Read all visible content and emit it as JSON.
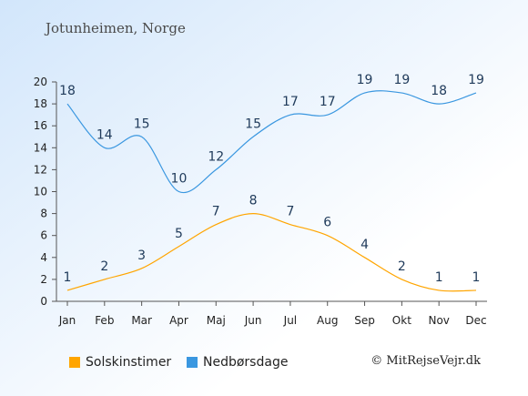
{
  "page": {
    "title": "Jotunheimen, Norge",
    "copyright": "© MitRejseVejr.dk"
  },
  "chart_data": {
    "type": "line",
    "categories": [
      "Jan",
      "Feb",
      "Mar",
      "Apr",
      "Maj",
      "Jun",
      "Jul",
      "Aug",
      "Sep",
      "Okt",
      "Nov",
      "Dec"
    ],
    "ylim": [
      0,
      20
    ],
    "yticks": [
      0,
      2,
      4,
      6,
      8,
      10,
      12,
      14,
      16,
      18,
      20
    ],
    "grid": false,
    "legend_position": "bottom",
    "series": [
      {
        "name": "Solskinstimer",
        "color": "#ffa500",
        "values": [
          1,
          2,
          3,
          5,
          7,
          8,
          7,
          6,
          4,
          2,
          1,
          1
        ]
      },
      {
        "name": "Nedbørsdage",
        "color": "#3a97e0",
        "values": [
          18,
          14,
          15,
          10,
          12,
          15,
          17,
          17,
          19,
          19,
          18,
          19
        ]
      }
    ]
  }
}
